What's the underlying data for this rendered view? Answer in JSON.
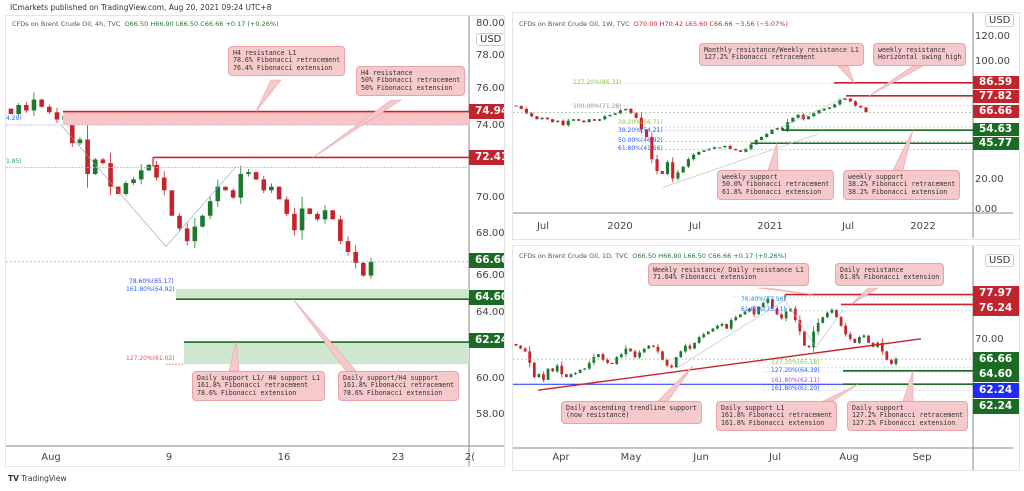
{
  "publisher": "ICmarkets published on TradingView.com, Aug 20, 2021 09:24 UTC+8",
  "brand": "TradingView",
  "colors": {
    "up": "#1b7a2e",
    "down": "#c8232c",
    "resist": "#c8232c",
    "support": "#1b6b25",
    "blue": "#1f2cf5"
  },
  "chart_data": [
    {
      "type": "candlestick",
      "name": "h4",
      "symbol": "CFDs on Brent Crude Oil, 4h, TVC",
      "ohlc": {
        "o": "O66.50",
        "h": "H66.90",
        "l": "L66.50",
        "c": "C66.66",
        "chg": "+0.17 (+0.26%)"
      },
      "currency": "USD",
      "yticks": [
        "80.00",
        "78.00",
        "76.00",
        "74.00",
        "70.00",
        "68.00",
        "66.00",
        "64.00",
        "60.00",
        "58.00"
      ],
      "xticks": [
        "Aug",
        "9",
        "16",
        "23",
        "2("
      ],
      "closes": [
        74.8,
        75.3,
        75.0,
        75.6,
        75.2,
        74.9,
        74.5,
        74.7,
        73.2,
        73.4,
        71.5,
        72.3,
        72.1,
        70.8,
        70.4,
        71.0,
        71.2,
        71.7,
        72.0,
        71.3,
        70.6,
        69.2,
        68.5,
        67.8,
        68.6,
        69.2,
        70.0,
        70.8,
        70.6,
        70.2,
        71.5,
        71.6,
        71.2,
        70.6,
        70.8,
        70.1,
        69.3,
        68.4,
        69.6,
        69.3,
        69.0,
        69.5,
        69.0,
        67.8,
        67.2,
        66.6,
        65.9,
        66.66
      ],
      "levels": [
        {
          "price": "74.94",
          "kind": "resistance"
        },
        {
          "price": "72.41",
          "kind": "resistance"
        },
        {
          "price": "66.66",
          "kind": "current"
        },
        {
          "price": "64.60",
          "kind": "support"
        },
        {
          "price": "62.24",
          "kind": "support"
        }
      ],
      "fibs": [
        "4.29)",
        "1.85)",
        "78.60%(65.17)",
        "161.80%(64.92)",
        "127.20%(61.02)"
      ],
      "annotations": [
        "H4 resistance L1\n78.6% Fibonacci retracement\n76.4% Fibonacci extension",
        "H4 resistance\n50% Fibonacci retracement\n50% Fibonacci extension",
        "Daily support L1/ H4 support L1\n161.8% Fibonacci retracement\n78.6% Fibonacci extension",
        "Daily support/H4 support\n161.8% Fibonacci retracement\n78.6% Fibonacci extension"
      ]
    },
    {
      "type": "candlestick",
      "name": "weekly",
      "symbol": "CFDs on Brent Crude Oil, 1W, TVC",
      "ohlc": {
        "o": "O70.00",
        "h": "H70.42",
        "l": "L65.60",
        "c": "C66.66",
        "chg": "−3.56 (−5.07%)"
      },
      "currency": "USD",
      "yticks": [
        "120.00",
        "100.00",
        "20.00",
        "0.00"
      ],
      "xticks": [
        "Jul",
        "2020",
        "Jul",
        "2021",
        "Jul",
        "2022"
      ],
      "closes": [
        71,
        69,
        66,
        64,
        62,
        63,
        62,
        60,
        61,
        58,
        61,
        62,
        61,
        60,
        62,
        61,
        62,
        64,
        65,
        66,
        68,
        69,
        66,
        63,
        55,
        50,
        35,
        27,
        25,
        33,
        22,
        26,
        30,
        35,
        38,
        40,
        41,
        42,
        43,
        43,
        44,
        42,
        41,
        40,
        42,
        45,
        48,
        50,
        52,
        55,
        56,
        55,
        60,
        63,
        65,
        62,
        64,
        66,
        68,
        69,
        70,
        72,
        75,
        76,
        74,
        71,
        70,
        66.66
      ],
      "levels": [
        {
          "price": "86.59",
          "kind": "resistance"
        },
        {
          "price": "77.82",
          "kind": "resistance"
        },
        {
          "price": "66.66",
          "kind": "current"
        },
        {
          "price": "54.63",
          "kind": "support"
        },
        {
          "price": "45.77",
          "kind": "support"
        }
      ],
      "fibs": [
        "127.20%(86.31)",
        "100.00%(71.28)",
        "38.20%(56.71)",
        "38.20%(54.21)",
        "50.00%(46.92)",
        "61.80%(41.66)"
      ],
      "annotations": [
        "Monthly resistance/Weekly resistance L1\n127.2% Fibonacci retracement",
        "weekly resistance\nHorizontal swing high",
        "weekly support\n50.0% fibonacci retracement\n61.8% Fibonacci extension",
        "weekly support\n38.2% Fibonacci retracement\n38.2% Fibonacci extension"
      ]
    },
    {
      "type": "candlestick",
      "name": "daily",
      "symbol": "CFDs on Brent Crude Oil, 1D, TVC",
      "ohlc": {
        "o": "O66.50",
        "h": "H66.90",
        "l": "L66.50",
        "c": "C66.66",
        "chg": "+0.17 (+0.26%)"
      },
      "currency": "USD",
      "yticks": [
        "70.00"
      ],
      "xticks": [
        "Apr",
        "May",
        "Jun",
        "Jul",
        "Aug",
        "Sep"
      ],
      "closes": [
        69,
        68.5,
        68,
        66,
        63.5,
        64,
        63,
        65,
        64.5,
        65.5,
        64,
        63.5,
        64,
        64.2,
        64.8,
        65,
        66,
        67,
        67.5,
        66.5,
        66,
        65.8,
        67,
        67.5,
        68.5,
        68,
        67,
        67.8,
        68.5,
        69,
        68.8,
        68,
        66.5,
        65.5,
        65.2,
        67,
        68,
        69,
        68.5,
        69.5,
        70.5,
        71,
        71.5,
        72,
        72.5,
        72.8,
        72,
        73.5,
        74,
        74.5,
        75,
        75.5,
        74.5,
        75.8,
        76.5,
        77.2,
        75.5,
        74.5,
        73.8,
        75,
        75.5,
        73.5,
        71.5,
        69,
        68.7,
        71.5,
        73,
        74,
        74.8,
        75.3,
        74,
        72.5,
        71,
        70.2,
        69.5,
        70.5,
        70.8,
        69.5,
        68.8,
        69.5,
        68,
        66.5,
        65.8,
        66.66
      ],
      "levels": [
        {
          "price": "77.97",
          "kind": "resistance"
        },
        {
          "price": "76.24",
          "kind": "resistance"
        },
        {
          "price": "66.66",
          "kind": "current"
        },
        {
          "price": "64.60",
          "kind": "support"
        },
        {
          "price": "62.24",
          "kind": "blue"
        },
        {
          "price": "62.24",
          "kind": "support"
        }
      ],
      "fibs": [
        "76.40%(77.56)",
        "61.80%(75.11)",
        "127.20%(65.18)",
        "127.20%(64.39)",
        "161.80%(62.11)",
        "161.80%(61.20)"
      ],
      "annotations": [
        "Weekly resistance/ Daily resistance L1\n71.64% Fibonacci extension",
        "Daily resistance\n61.8% Fibonacci extension",
        "Daily ascending trendline support\n(now resistance)",
        "Daily support L1\n161.8% Fibonacci retracement\n161.8% Fibonacci extension",
        "Daily support\n127.2% Fibonacci retracement\n127.2% Fibonacci extension"
      ]
    }
  ]
}
